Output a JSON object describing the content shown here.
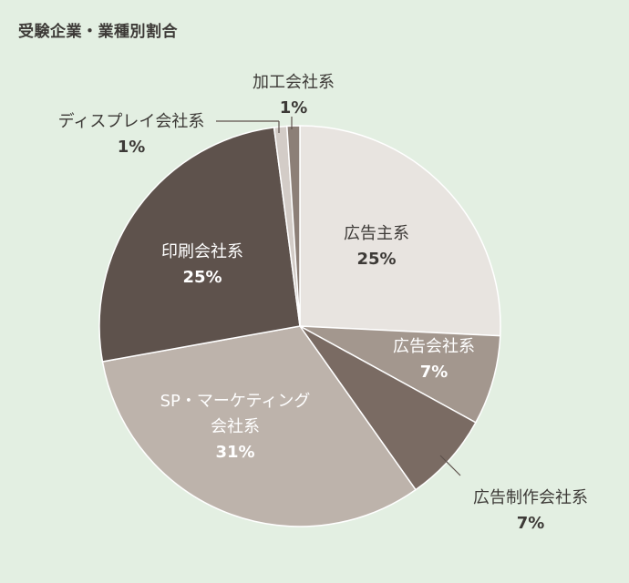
{
  "chart_title": "受験企業・業種別割合",
  "chart_data": {
    "type": "pie",
    "title": "受験企業・業種別割合",
    "slices": [
      {
        "name": "広告主系",
        "value": 25,
        "label": "25%",
        "color": "#e8e4e0"
      },
      {
        "name": "広告会社系",
        "value": 7,
        "label": "7%",
        "color": "#a3978e"
      },
      {
        "name": "広告制作会社系",
        "value": 7,
        "label": "7%",
        "color": "#7a6b63"
      },
      {
        "name": "SP・マーケティング会社系",
        "value": 31,
        "label": "31%",
        "color": "#bdb3ab"
      },
      {
        "name": "印刷会社系",
        "value": 25,
        "label": "25%",
        "color": "#5e524c"
      },
      {
        "name": "ディスプレイ会社系",
        "value": 1,
        "label": "1%",
        "color": "#d3ccc7"
      },
      {
        "name": "加工会社系",
        "value": 1,
        "label": "1%",
        "color": "#8c7f77"
      }
    ]
  },
  "labels": {
    "s0": {
      "name": "広告主系",
      "pct": "25%"
    },
    "s1": {
      "name": "広告会社系",
      "pct": "7%"
    },
    "s2": {
      "name": "広告制作会社系",
      "pct": "7%"
    },
    "s3": {
      "line1": "SP・マーケティング",
      "line2": "会社系",
      "pct": "31%"
    },
    "s4": {
      "name": "印刷会社系",
      "pct": "25%"
    },
    "s5": {
      "name": "ディスプレイ会社系",
      "pct": "1%"
    },
    "s6": {
      "name": "加工会社系",
      "pct": "1%"
    }
  }
}
